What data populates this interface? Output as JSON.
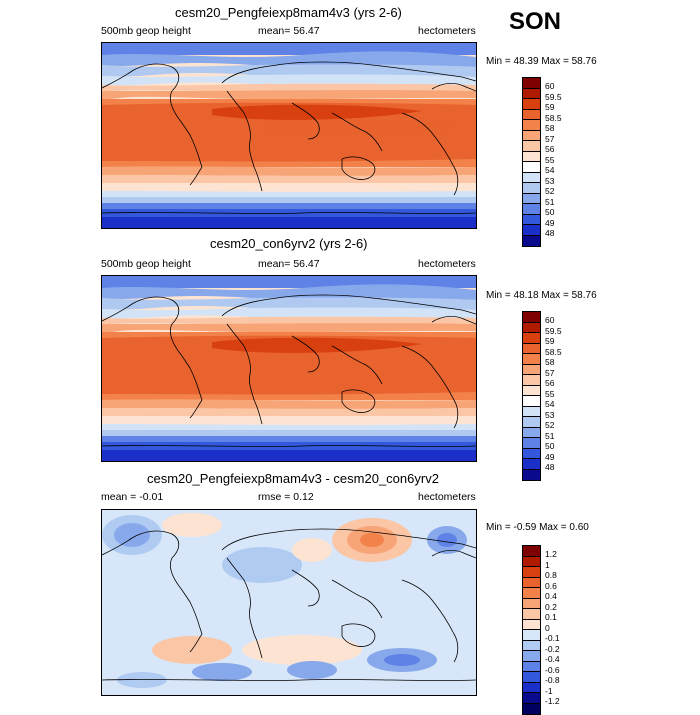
{
  "season": "SON",
  "panels": [
    {
      "title": "cesm20_Pengfeiexp8mam4v3 (yrs 2-6)",
      "left_label": "500mb geop height",
      "center_label": "mean=  56.47",
      "right_label": "hectometers",
      "minmax": "Min = 48.39 Max =  58.76"
    },
    {
      "title": "cesm20_con6yrv2 (yrs 2-6)",
      "left_label": "500mb geop height",
      "center_label": "mean=  56.47",
      "right_label": "hectometers",
      "minmax": "Min = 48.18 Max =  58.76"
    },
    {
      "title": "cesm20_Pengfeiexp8mam4v3 - cesm20_con6yrv2",
      "left_label": "mean =  -0.01",
      "center_label": "rmse =   0.12",
      "right_label": "hectometers",
      "minmax": "Min =  -0.59 Max =   0.60"
    }
  ],
  "colorbar_abs": {
    "labels": [
      "60",
      "59.5",
      "59",
      "58.5",
      "58",
      "57",
      "56",
      "55",
      "54",
      "53",
      "52",
      "51",
      "50",
      "49",
      "48"
    ],
    "colors": [
      "#7f0000",
      "#b01b00",
      "#d9400f",
      "#e8632d",
      "#f2814a",
      "#f7a477",
      "#fbc6a6",
      "#fde4d2",
      "#ffffff",
      "#d2e3f7",
      "#afc9f1",
      "#88a8ec",
      "#5f82e6",
      "#3458dc",
      "#1a30c8",
      "#0a0a8c"
    ]
  },
  "colorbar_diff": {
    "labels": [
      "1.2",
      "1",
      "0.8",
      "0.6",
      "0.4",
      "0.2",
      "0.1",
      "0",
      "-0.1",
      "-0.2",
      "-0.4",
      "-0.6",
      "-0.8",
      "-1",
      "-1.2"
    ],
    "colors": [
      "#7f0000",
      "#b01b00",
      "#d9400f",
      "#e8632d",
      "#f2814a",
      "#f7a477",
      "#fbc6a6",
      "#fde4d2",
      "#d7e6f8",
      "#b0cbf2",
      "#88a8ec",
      "#5f82e6",
      "#3458dc",
      "#1a30c8",
      "#0a0a8c",
      "#000060"
    ]
  }
}
